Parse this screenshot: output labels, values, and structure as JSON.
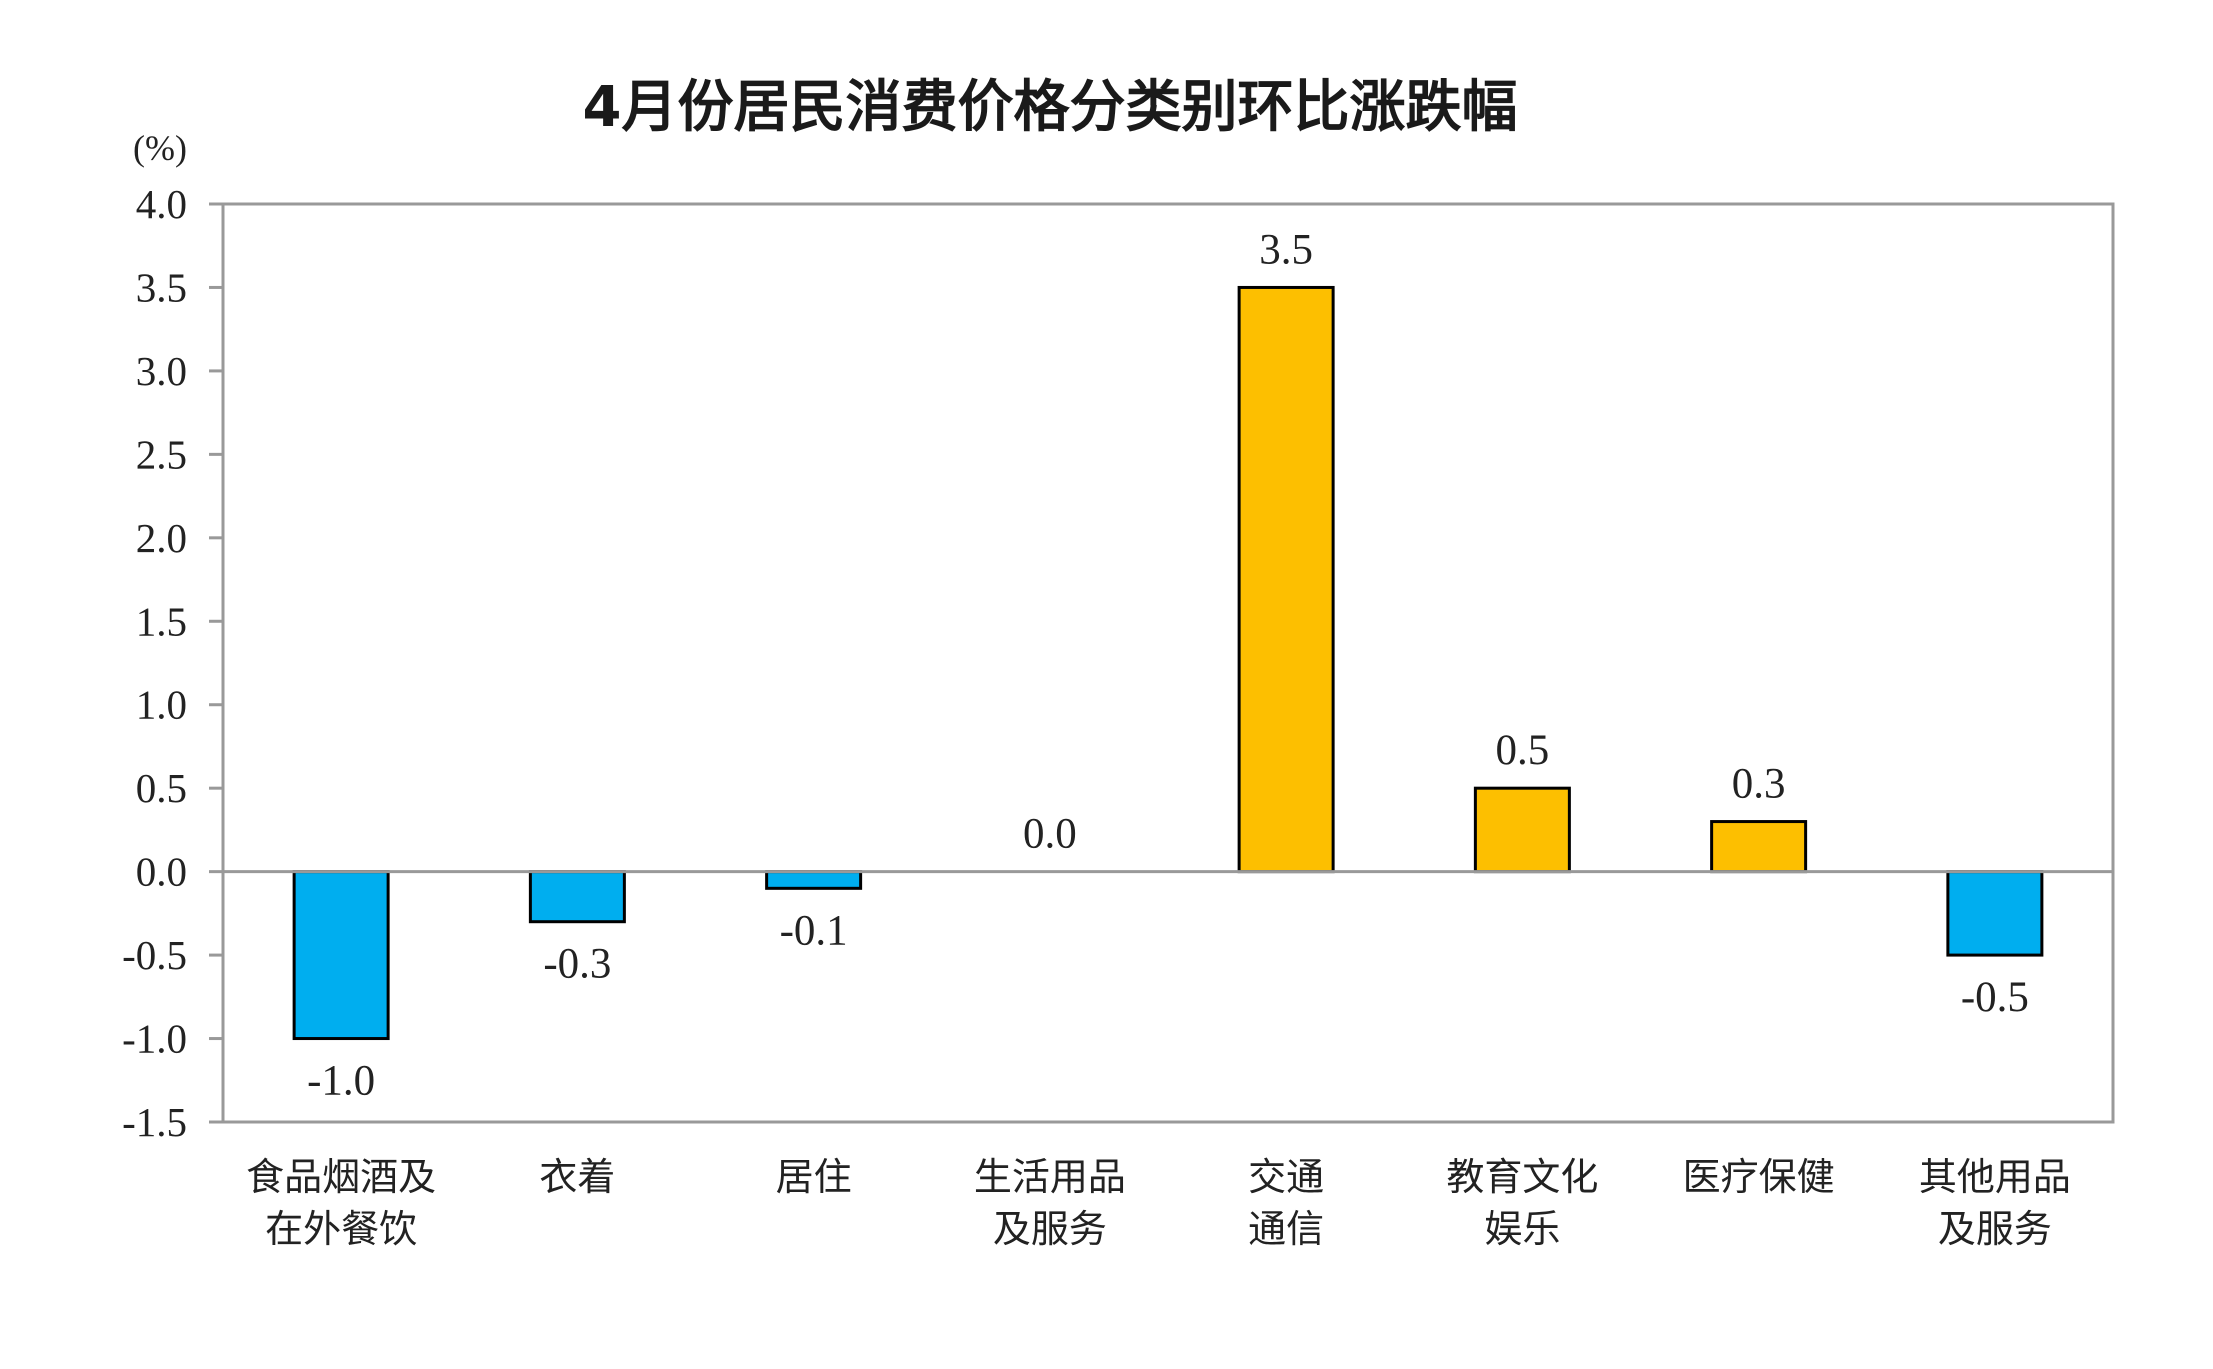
{
  "chart_data": {
    "type": "bar",
    "title": "4月份居民消费价格分类别环比涨跌幅",
    "ylabel": "(%)",
    "ylim": [
      -1.5,
      4.0
    ],
    "yticks": [
      "4.0",
      "3.5",
      "3.0",
      "2.5",
      "2.0",
      "1.5",
      "1.0",
      "0.5",
      "0.0",
      "-0.5",
      "-1.0",
      "-1.5"
    ],
    "categories": [
      [
        "食品烟酒及",
        "在外餐饮"
      ],
      [
        "衣着"
      ],
      [
        "居住"
      ],
      [
        "生活用品",
        "及服务"
      ],
      [
        "交通",
        "通信"
      ],
      [
        "教育文化",
        "娱乐"
      ],
      [
        "医疗保健"
      ],
      [
        "其他用品",
        "及服务"
      ]
    ],
    "values": [
      -1.0,
      -0.3,
      -0.1,
      0.0,
      3.5,
      0.5,
      0.3,
      -0.5
    ],
    "value_labels": [
      "-1.0",
      "-0.3",
      "-0.1",
      "0.0",
      "3.5",
      "0.5",
      "0.3",
      "-0.5"
    ],
    "grid": false,
    "legend": "none",
    "colors": {
      "positive": "#FDBF00",
      "negative": "#00AEEF",
      "bar_border": "#000000",
      "axis": "#999999",
      "zero_line": "#999999"
    }
  }
}
